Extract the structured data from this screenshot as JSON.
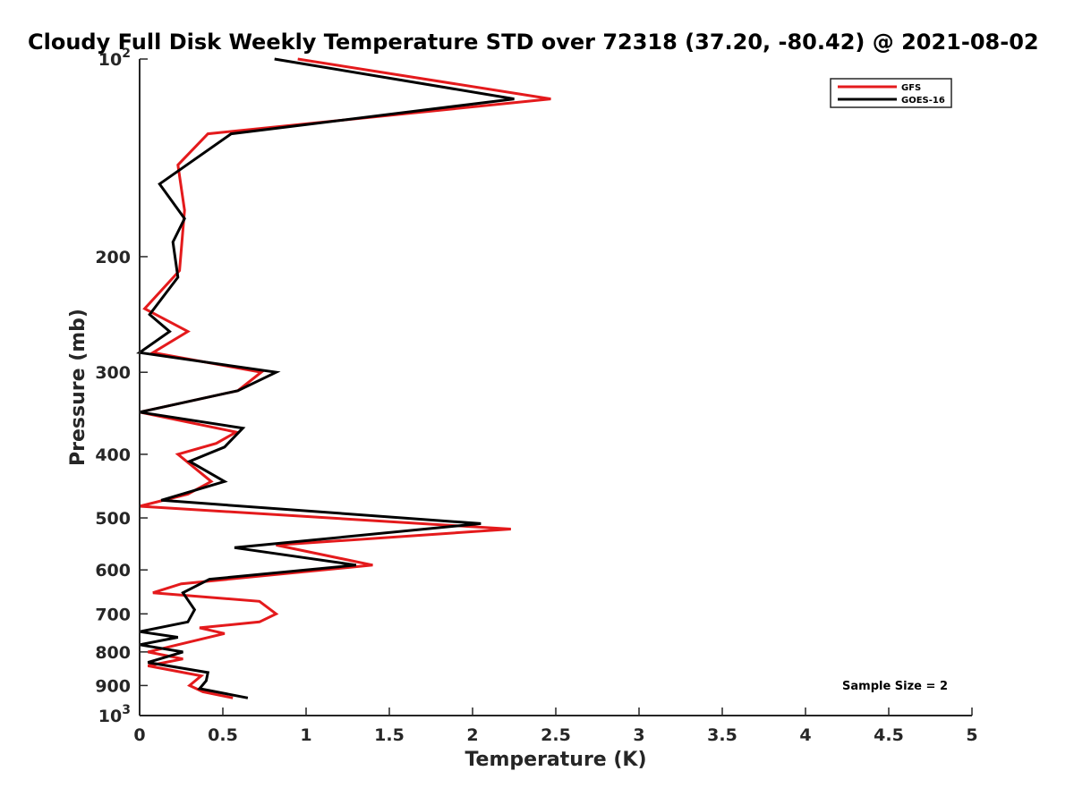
{
  "chart_data": {
    "type": "line",
    "title": "Cloudy Full Disk Weekly Temperature STD over 72318 (37.20, -80.42) @ 2021-08-02",
    "xlabel": "Temperature (K)",
    "ylabel": "Pressure (mb)",
    "xlim": [
      0,
      5
    ],
    "ylim": [
      100,
      1000
    ],
    "yscale": "log",
    "y_reversed": true,
    "xticks": [
      0,
      0.5,
      1,
      1.5,
      2,
      2.5,
      3,
      3.5,
      4,
      4.5,
      5
    ],
    "xtick_labels": [
      "0",
      "0.5",
      "1",
      "1.5",
      "2",
      "2.5",
      "3",
      "3.5",
      "4",
      "4.5",
      "5"
    ],
    "yticks": [
      100,
      200,
      300,
      400,
      500,
      600,
      700,
      800,
      900,
      1000
    ],
    "ytick_labels": [
      {
        "base": "10",
        "exp": "2"
      },
      {
        "base": "200",
        "exp": ""
      },
      {
        "base": "300",
        "exp": ""
      },
      {
        "base": "400",
        "exp": ""
      },
      {
        "base": "500",
        "exp": ""
      },
      {
        "base": "600",
        "exp": ""
      },
      {
        "base": "700",
        "exp": ""
      },
      {
        "base": "800",
        "exp": ""
      },
      {
        "base": "900",
        "exp": ""
      },
      {
        "base": "10",
        "exp": "3"
      }
    ],
    "legend_position": "top-right",
    "annotation": "Sample Size = 2",
    "series": [
      {
        "name": "GFS",
        "color": "#e41a1c",
        "points": [
          [
            0.95,
            100
          ],
          [
            2.47,
            115
          ],
          [
            0.41,
            130
          ],
          [
            0.23,
            145
          ],
          [
            0.27,
            170
          ],
          [
            0.24,
            210
          ],
          [
            0.03,
            240
          ],
          [
            0.29,
            260
          ],
          [
            0.08,
            280
          ],
          [
            0.73,
            300
          ],
          [
            0.59,
            320
          ],
          [
            0.0,
            345
          ],
          [
            0.58,
            370
          ],
          [
            0.46,
            385
          ],
          [
            0.23,
            400
          ],
          [
            0.43,
            440
          ],
          [
            0.29,
            460
          ],
          [
            0.0,
            480
          ],
          [
            2.23,
            520
          ],
          [
            0.82,
            550
          ],
          [
            1.4,
            590
          ],
          [
            0.25,
            630
          ],
          [
            0.08,
            650
          ],
          [
            0.72,
            670
          ],
          [
            0.82,
            700
          ],
          [
            0.72,
            720
          ],
          [
            0.36,
            735
          ],
          [
            0.51,
            750
          ],
          [
            0.23,
            780
          ],
          [
            0.05,
            800
          ],
          [
            0.26,
            820
          ],
          [
            0.05,
            840
          ],
          [
            0.37,
            870
          ],
          [
            0.3,
            900
          ],
          [
            0.38,
            920
          ],
          [
            0.56,
            940
          ]
        ]
      },
      {
        "name": "GOES-16",
        "color": "#000000",
        "points": [
          [
            0.81,
            100
          ],
          [
            2.25,
            115
          ],
          [
            0.55,
            130
          ],
          [
            0.12,
            155
          ],
          [
            0.27,
            175
          ],
          [
            0.2,
            190
          ],
          [
            0.23,
            215
          ],
          [
            0.06,
            245
          ],
          [
            0.18,
            260
          ],
          [
            0.0,
            280
          ],
          [
            0.82,
            300
          ],
          [
            0.59,
            320
          ],
          [
            0.0,
            345
          ],
          [
            0.62,
            365
          ],
          [
            0.51,
            390
          ],
          [
            0.3,
            410
          ],
          [
            0.51,
            440
          ],
          [
            0.13,
            470
          ],
          [
            2.05,
            510
          ],
          [
            0.57,
            555
          ],
          [
            1.3,
            590
          ],
          [
            0.42,
            620
          ],
          [
            0.26,
            650
          ],
          [
            0.33,
            690
          ],
          [
            0.29,
            720
          ],
          [
            0.0,
            745
          ],
          [
            0.23,
            760
          ],
          [
            0.0,
            780
          ],
          [
            0.26,
            800
          ],
          [
            0.05,
            830
          ],
          [
            0.41,
            860
          ],
          [
            0.4,
            885
          ],
          [
            0.36,
            910
          ],
          [
            0.65,
            940
          ]
        ]
      }
    ]
  }
}
